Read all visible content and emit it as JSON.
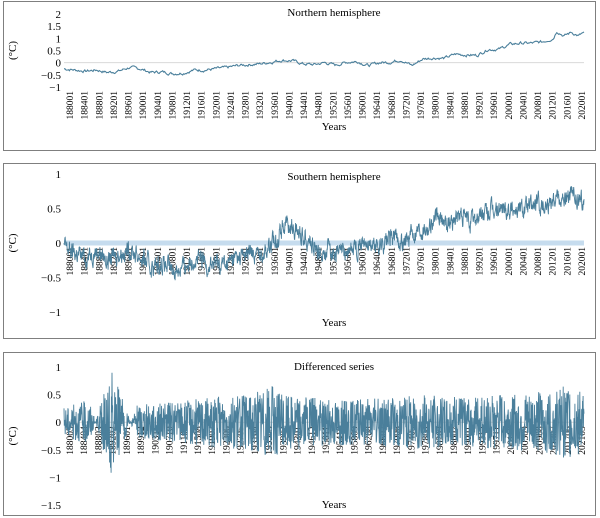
{
  "chart_data": [
    {
      "type": "line",
      "title": "Northern hemisphere",
      "ylabel": "(°C)",
      "xlabel": "Years",
      "ylim": [
        -1,
        2
      ],
      "yticks": [
        -1,
        -0.5,
        0,
        0.5,
        1,
        1.5,
        2
      ],
      "ytick_labels": [
        "−1",
        "−0.5",
        "0",
        "0.5",
        "1",
        "1.5",
        "2"
      ],
      "xlim": [
        1880,
        2023.5
      ],
      "xtick_labels": [
        "188001",
        "188401",
        "188801",
        "189201",
        "189601",
        "190001",
        "190401",
        "190801",
        "191201",
        "191601",
        "192001",
        "192401",
        "192801",
        "193201",
        "193601",
        "194001",
        "194401",
        "194801",
        "195201",
        "195601",
        "196001",
        "196401",
        "196801",
        "197201",
        "197601",
        "198001",
        "198401",
        "198801",
        "199201",
        "199601",
        "200001",
        "200401",
        "200801",
        "201201",
        "201601",
        "202001"
      ],
      "color": "#4a7f9b",
      "series": [
        {
          "x": [
            1880,
            1883,
            1886,
            1889,
            1892,
            1895,
            1898,
            1901,
            1904,
            1907,
            1910,
            1913,
            1916,
            1919,
            1922,
            1925,
            1928,
            1931,
            1934,
            1937,
            1940,
            1943,
            1946,
            1949,
            1952,
            1955,
            1958,
            1961,
            1964,
            1967,
            1970,
            1973,
            1976,
            1979,
            1982,
            1985,
            1988,
            1991,
            1994,
            1997,
            2000,
            2003,
            2006,
            2009,
            2012,
            2015,
            2016,
            2018,
            2020,
            2022,
            2023
          ],
          "values": [
            -0.25,
            -0.3,
            -0.35,
            -0.3,
            -0.4,
            -0.35,
            -0.2,
            -0.25,
            -0.4,
            -0.38,
            -0.45,
            -0.42,
            -0.3,
            -0.3,
            -0.25,
            -0.2,
            -0.12,
            -0.08,
            -0.05,
            0.02,
            0.1,
            0.08,
            -0.05,
            -0.08,
            0.0,
            -0.1,
            0.02,
            0.05,
            -0.12,
            0.0,
            0.02,
            0.12,
            -0.12,
            0.15,
            0.2,
            0.18,
            0.35,
            0.32,
            0.3,
            0.55,
            0.55,
            0.75,
            0.8,
            0.8,
            0.85,
            1.0,
            1.3,
            1.1,
            1.25,
            1.1,
            1.2
          ]
        }
      ]
    },
    {
      "type": "line",
      "title": "Southern hemisphere",
      "ylabel": "(°C)",
      "xlabel": "Years",
      "ylim": [
        -1,
        1
      ],
      "yticks": [
        -1,
        -0.5,
        0,
        0.5,
        1
      ],
      "ytick_labels": [
        "−1",
        "−0.5",
        "0",
        "0.5",
        "1"
      ],
      "xlim": [
        1880,
        2023.5
      ],
      "xtick_labels": [
        "188001",
        "188401",
        "188801",
        "189201",
        "189601",
        "190001",
        "190401",
        "190801",
        "191201",
        "191601",
        "192001",
        "192401",
        "192801",
        "193201",
        "193601",
        "194001",
        "194401",
        "194801",
        "195201",
        "195601",
        "196001",
        "196401",
        "196801",
        "197201",
        "197601",
        "198001",
        "198401",
        "198801",
        "199201",
        "199601",
        "200001",
        "200401",
        "200801",
        "201201",
        "201601",
        "202001"
      ],
      "color": "#4a7f9b",
      "series": [
        {
          "x": [
            1880,
            1883,
            1886,
            1889,
            1892,
            1895,
            1898,
            1901,
            1904,
            1907,
            1910,
            1913,
            1916,
            1919,
            1922,
            1925,
            1928,
            1931,
            1934,
            1937,
            1939,
            1941,
            1943,
            1945,
            1947,
            1950,
            1953,
            1956,
            1959,
            1962,
            1965,
            1968,
            1971,
            1974,
            1977,
            1980,
            1983,
            1986,
            1989,
            1992,
            1995,
            1998,
            2001,
            2004,
            2007,
            2010,
            2013,
            2016,
            2018,
            2020,
            2022,
            2023
          ],
          "values": [
            -0.05,
            -0.15,
            -0.2,
            -0.1,
            -0.25,
            -0.15,
            -0.1,
            -0.2,
            -0.35,
            -0.3,
            -0.4,
            -0.35,
            -0.2,
            -0.3,
            -0.3,
            -0.3,
            -0.2,
            -0.15,
            -0.15,
            -0.05,
            0.1,
            0.3,
            0.2,
            0.15,
            0.1,
            -0.15,
            -0.1,
            -0.15,
            -0.1,
            0.0,
            -0.05,
            0.0,
            0.1,
            0.0,
            0.2,
            0.25,
            0.35,
            0.3,
            0.4,
            0.3,
            0.4,
            0.45,
            0.5,
            0.5,
            0.5,
            0.55,
            0.55,
            0.75,
            0.6,
            0.7,
            0.6,
            0.6
          ]
        }
      ]
    },
    {
      "type": "line",
      "title": "Differenced series",
      "ylabel": "(°C)",
      "xlabel": "Years",
      "ylim": [
        -1.5,
        1
      ],
      "yticks": [
        -1.5,
        -1,
        -0.5,
        0,
        0.5,
        1
      ],
      "ytick_labels": [
        "−1.5",
        "−1",
        "−0.5",
        "0",
        "0.5",
        "1"
      ],
      "xlim": [
        1880,
        2023.5
      ],
      "xtick_labels": [
        "188005",
        "188404",
        "188803",
        "189202",
        "189601",
        "189912",
        "190311",
        "190710",
        "191109",
        "191508",
        "191907",
        "192306",
        "192705",
        "193104",
        "193503",
        "193902",
        "194301",
        "194612",
        "195011",
        "195410",
        "195809",
        "196208",
        "196607",
        "197006",
        "197405",
        "197804",
        "198203",
        "198602",
        "199001",
        "199312",
        "199711",
        "200110",
        "200509",
        "200908",
        "201307",
        "201706",
        "202105"
      ],
      "color": "#4a7f9b",
      "series": [
        {
          "x": [
            1880,
            1887,
            1891,
            1893,
            1900,
            1910,
            1920,
            1930,
            1937,
            1940,
            1950,
            1960,
            1970,
            1980,
            1990,
            2000,
            2010,
            2015,
            2020,
            2023
          ],
          "values": [
            0.3,
            0.45,
            -0.6,
            -1.15,
            0.35,
            0.4,
            0.5,
            0.55,
            0.75,
            0.6,
            0.5,
            0.45,
            0.5,
            0.55,
            0.5,
            0.55,
            0.6,
            0.65,
            0.8,
            0.6
          ]
        }
      ]
    }
  ]
}
